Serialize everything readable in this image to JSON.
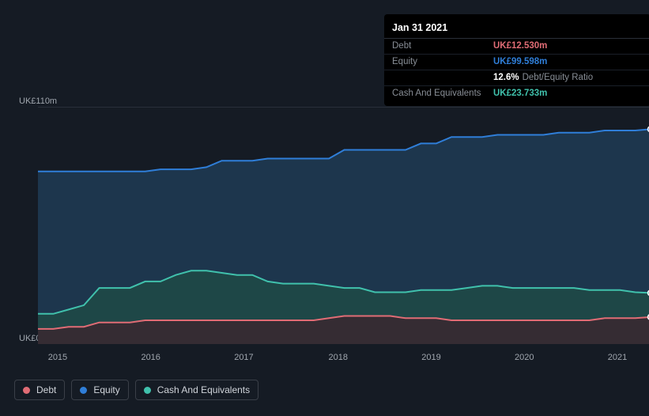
{
  "chart": {
    "type": "area",
    "background_color": "#151b24",
    "grid_color": "#40464f",
    "ylim": [
      0,
      110
    ],
    "ylabel_top": "UK£110m",
    "ylabel_bottom": "UK£0",
    "ylabel_color": "#a0a6ae",
    "ylabel_fontsize": 11,
    "xlabels": [
      "2015",
      "2016",
      "2017",
      "2018",
      "2019",
      "2020",
      "2021"
    ],
    "xlabel_positions_pct": [
      7.0,
      22.0,
      37.0,
      52.2,
      67.2,
      82.2,
      97.2
    ],
    "xlabel_color": "#a0a6ae",
    "series": {
      "equity": {
        "color_line": "#2f7ed8",
        "color_fill": "#1e3a52",
        "fill_opacity": 0.9,
        "values": [
          80,
          80,
          80,
          80,
          80,
          80,
          80,
          80,
          81,
          81,
          81,
          82,
          85,
          85,
          85,
          86,
          86,
          86,
          86,
          86,
          90,
          90,
          90,
          90,
          90,
          93,
          93,
          96,
          96,
          96,
          97,
          97,
          97,
          97,
          98,
          98,
          98,
          99,
          99,
          99,
          99.6
        ]
      },
      "cash": {
        "color_line": "#40c1ac",
        "color_fill": "#1f4a47",
        "fill_opacity": 0.85,
        "values": [
          14,
          14,
          16,
          18,
          26,
          26,
          26,
          29,
          29,
          32,
          34,
          34,
          33,
          32,
          32,
          29,
          28,
          28,
          28,
          27,
          26,
          26,
          24,
          24,
          24,
          25,
          25,
          25,
          26,
          27,
          27,
          26,
          26,
          26,
          26,
          26,
          25,
          25,
          25,
          24,
          23.7
        ]
      },
      "debt": {
        "color_line": "#e06c75",
        "color_fill": "#3a2830",
        "fill_opacity": 0.85,
        "values": [
          7,
          7,
          8,
          8,
          10,
          10,
          10,
          11,
          11,
          11,
          11,
          11,
          11,
          11,
          11,
          11,
          11,
          11,
          11,
          12,
          13,
          13,
          13,
          13,
          12,
          12,
          12,
          11,
          11,
          11,
          11,
          11,
          11,
          11,
          11,
          11,
          11,
          12,
          12,
          12,
          12.5
        ]
      }
    },
    "line_width": 2,
    "marker": {
      "shape": "circle",
      "radius": 3.5,
      "stroke": "#ffffff",
      "stroke_width": 1.5
    }
  },
  "tooltip": {
    "title": "Jan 31 2021",
    "rows": [
      {
        "label": "Debt",
        "value": "UK£12.530m",
        "color": "#e06c75"
      },
      {
        "label": "Equity",
        "value": "UK£99.598m",
        "color": "#2f7ed8"
      },
      {
        "label": "",
        "value": "12.6%",
        "color": "#ffffff",
        "suffix": "Debt/Equity Ratio"
      },
      {
        "label": "Cash And Equivalents",
        "value": "UK£23.733m",
        "color": "#40c1ac"
      }
    ]
  },
  "legend": {
    "items": [
      {
        "label": "Debt",
        "color": "#e06c75"
      },
      {
        "label": "Equity",
        "color": "#2f7ed8"
      },
      {
        "label": "Cash And Equivalents",
        "color": "#40c1ac"
      }
    ],
    "border_color": "#3a3f48",
    "text_color": "#d0d4da"
  }
}
